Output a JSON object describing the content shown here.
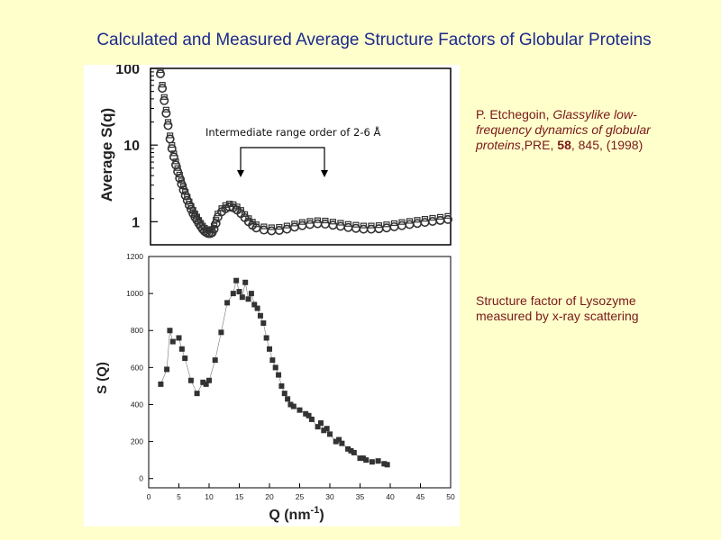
{
  "slide": {
    "title": "Calculated and Measured Average Structure Factors of Globular Proteins"
  },
  "reference": {
    "author": "P. Etchegoin, ",
    "article_title": "Glassylike low-frequency dynamics of globular proteins",
    "journal": ",PRE, ",
    "volume": "58",
    "pages_year": ", 845, (1998)"
  },
  "caption": "Structure factor of Lysozyme measured by x-ray scattering",
  "colors": {
    "title": "#1c2a8c",
    "note_text": "#7a1818",
    "background": "#ffffcc",
    "marker": "#333333"
  },
  "chart_data": [
    {
      "type": "scatter",
      "title": "",
      "xlabel": "",
      "ylabel": "Average S(q)",
      "yscale": "log",
      "ylim": [
        0.5,
        100
      ],
      "y_ticks": [
        "100",
        "10",
        "1"
      ],
      "annotation": "Intermediate range order of 2-6 Å",
      "series": [
        {
          "x": [
            0.5,
            0.55,
            0.6,
            0.65,
            0.7,
            0.75,
            0.8,
            0.85,
            0.9,
            0.95,
            1.0,
            1.05,
            1.1,
            1.15,
            1.2,
            1.25,
            1.3,
            1.35,
            1.4,
            1.45,
            1.5,
            1.55,
            1.6,
            1.65,
            1.7,
            1.75,
            1.8,
            1.85,
            1.9,
            1.95,
            2.0,
            2.1,
            2.2,
            2.3,
            2.4,
            2.5,
            2.6,
            2.7,
            2.8,
            2.9,
            3.0,
            3.2,
            3.4,
            3.6,
            3.8,
            4.0,
            4.2,
            4.4,
            4.6,
            4.8,
            5.0,
            5.2,
            5.4,
            5.6,
            5.8,
            6.0,
            6.2,
            6.4,
            6.6,
            6.8,
            7.0,
            7.2,
            7.4,
            7.6,
            7.8,
            8.0
          ],
          "y": [
            85,
            55,
            38,
            26,
            18,
            12,
            9,
            7,
            5.5,
            4.5,
            3.7,
            3.1,
            2.6,
            2.2,
            1.9,
            1.65,
            1.45,
            1.28,
            1.15,
            1.05,
            0.95,
            0.87,
            0.8,
            0.75,
            0.72,
            0.7,
            0.7,
            0.72,
            0.8,
            0.95,
            1.15,
            1.35,
            1.48,
            1.55,
            1.52,
            1.42,
            1.28,
            1.13,
            1.0,
            0.9,
            0.83,
            0.78,
            0.76,
            0.77,
            0.8,
            0.85,
            0.89,
            0.92,
            0.94,
            0.93,
            0.9,
            0.87,
            0.84,
            0.82,
            0.8,
            0.8,
            0.81,
            0.83,
            0.86,
            0.89,
            0.92,
            0.95,
            0.98,
            1.01,
            1.04,
            1.07
          ]
        }
      ]
    },
    {
      "type": "line",
      "title": "",
      "xlabel": "Q (nm",
      "xlabel_sup": "-1",
      "xlabel_end": ")",
      "ylabel": "S (Q)",
      "xlim": [
        0,
        50
      ],
      "ylim": [
        -50,
        1200
      ],
      "x_ticks": [
        0,
        5,
        10,
        15,
        20,
        25,
        30,
        35,
        40,
        45,
        50
      ],
      "y_ticks": [
        0,
        200,
        400,
        600,
        800,
        1000,
        1200
      ],
      "series": [
        {
          "x": [
            2,
            3,
            3.5,
            4,
            5,
            5.5,
            6,
            7,
            8,
            9,
            9.5,
            10,
            11,
            12,
            13,
            14,
            14.5,
            15,
            15.5,
            16,
            16.5,
            17,
            17.5,
            18,
            18.5,
            19,
            19.5,
            20,
            20.5,
            21,
            21.5,
            22,
            22.5,
            23,
            23.5,
            24,
            25,
            26,
            26.5,
            27,
            28,
            28.5,
            29,
            29.5,
            30,
            31,
            31.5,
            32,
            33,
            33.5,
            34,
            35,
            35.5,
            36,
            37,
            38,
            39,
            39.5
          ],
          "y": [
            510,
            590,
            800,
            740,
            760,
            700,
            650,
            530,
            460,
            520,
            510,
            530,
            640,
            790,
            950,
            1000,
            1070,
            1010,
            980,
            1060,
            970,
            1000,
            940,
            920,
            880,
            840,
            760,
            700,
            640,
            600,
            560,
            500,
            460,
            430,
            400,
            390,
            370,
            350,
            340,
            320,
            280,
            300,
            260,
            270,
            240,
            200,
            210,
            190,
            160,
            150,
            140,
            110,
            110,
            100,
            90,
            95,
            80,
            75
          ]
        }
      ]
    }
  ]
}
